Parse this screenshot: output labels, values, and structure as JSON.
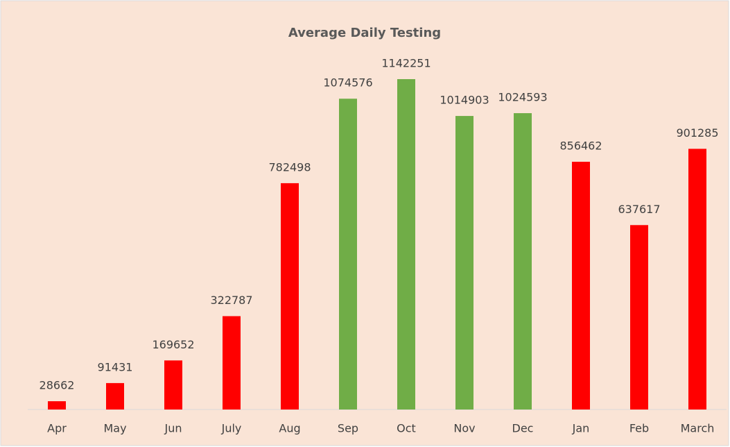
{
  "chart_data": {
    "type": "bar",
    "title": "Average Daily Testing",
    "categories": [
      "Apr",
      "May",
      "Jun",
      "July",
      "Aug",
      "Sep",
      "Oct",
      "Nov",
      "Dec",
      "Jan",
      "Feb",
      "March"
    ],
    "values": [
      28662,
      91431,
      169652,
      322787,
      782498,
      1074576,
      1142251,
      1014903,
      1024593,
      856462,
      637617,
      901285
    ],
    "colors": [
      "#ff0000",
      "#ff0000",
      "#ff0000",
      "#ff0000",
      "#ff0000",
      "#70ad47",
      "#70ad47",
      "#70ad47",
      "#70ad47",
      "#ff0000",
      "#ff0000",
      "#ff0000"
    ]
  }
}
